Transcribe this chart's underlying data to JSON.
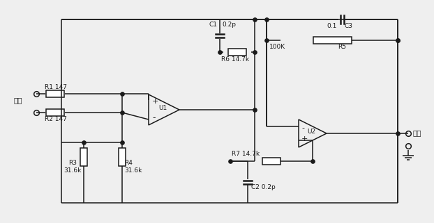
{
  "bg_color": "#efefef",
  "line_color": "#1a1a1a",
  "fig_width": 6.22,
  "fig_height": 3.21,
  "dpi": 100,
  "labels": {
    "input": "输入",
    "output": "输出",
    "R1": "R1 147",
    "R2": "R2 147",
    "R3": "R3\n31.6k",
    "R4": "R4\n31.6k",
    "R5": "R5",
    "R6": "R6 14.7k",
    "R7": "R7 14.7k",
    "C1": "C1",
    "C1v": "0.2p",
    "C2": "C2 0.2p",
    "C3": "C3",
    "C3v": "0.1",
    "U1": "U1",
    "U2": "U2",
    "R5v": "100K"
  }
}
